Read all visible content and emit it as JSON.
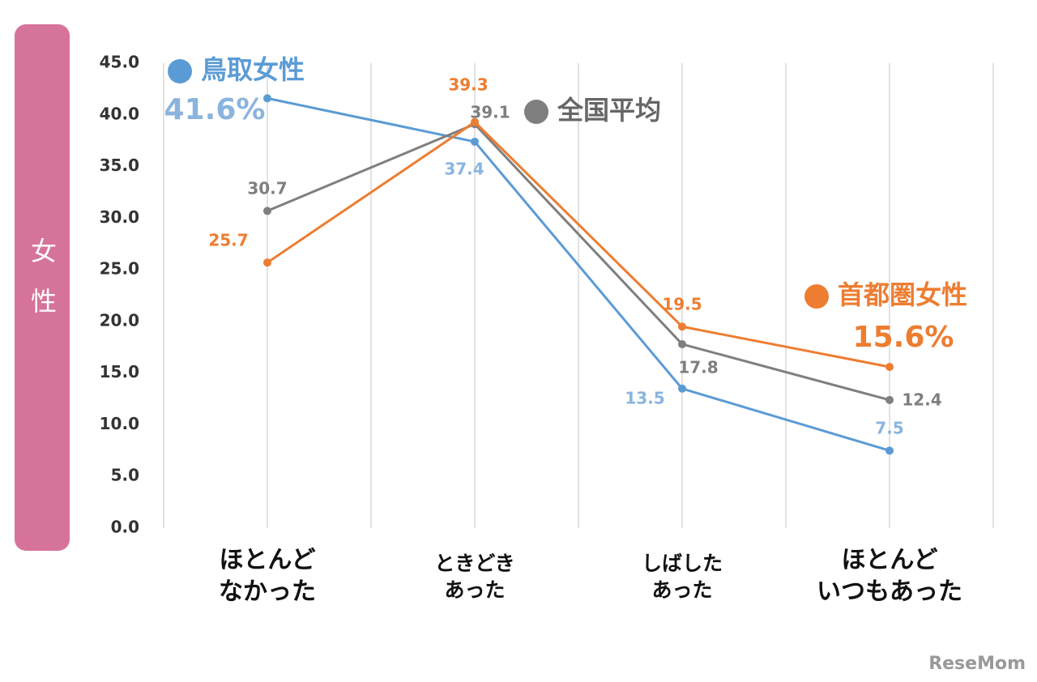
{
  "chart_data": {
    "type": "line",
    "y_label": "女性",
    "categories": [
      "ほとんど\nなかった",
      "ときどき\nあった",
      "しばした\nあった",
      "ほとんど\nいつもあった"
    ],
    "series": [
      {
        "name": "鳥取女性",
        "color": "#5b9bd5",
        "values": [
          41.6,
          37.4,
          13.5,
          7.5
        ],
        "value_labels": [
          "41.6%",
          "37.4",
          "13.5",
          "7.5"
        ]
      },
      {
        "name": "全国平均",
        "color": "#7f7f7f",
        "values": [
          30.7,
          39.1,
          17.8,
          12.4
        ],
        "value_labels": [
          "30.7",
          "39.1",
          "17.8",
          "12.4"
        ]
      },
      {
        "name": "首都圏女性",
        "color": "#ed7d31",
        "values": [
          25.7,
          39.3,
          19.5,
          15.6
        ],
        "value_labels": [
          "25.7",
          "39.3",
          "19.5",
          "15.6%"
        ]
      }
    ],
    "ylim": [
      0,
      45
    ],
    "yticks": [
      {
        "value": 0,
        "label": "0.0"
      },
      {
        "value": 5,
        "label": "5.0"
      },
      {
        "value": 10,
        "label": "10.0"
      },
      {
        "value": 15,
        "label": "15.0"
      },
      {
        "value": 20,
        "label": "20.0"
      },
      {
        "value": 25,
        "label": "25.0"
      },
      {
        "value": 30,
        "label": "30.0"
      },
      {
        "value": 35,
        "label": "35.0"
      },
      {
        "value": 40,
        "label": "40.0"
      },
      {
        "value": 45,
        "label": "45.0"
      }
    ],
    "grid": true,
    "watermark": "ReseMom"
  }
}
